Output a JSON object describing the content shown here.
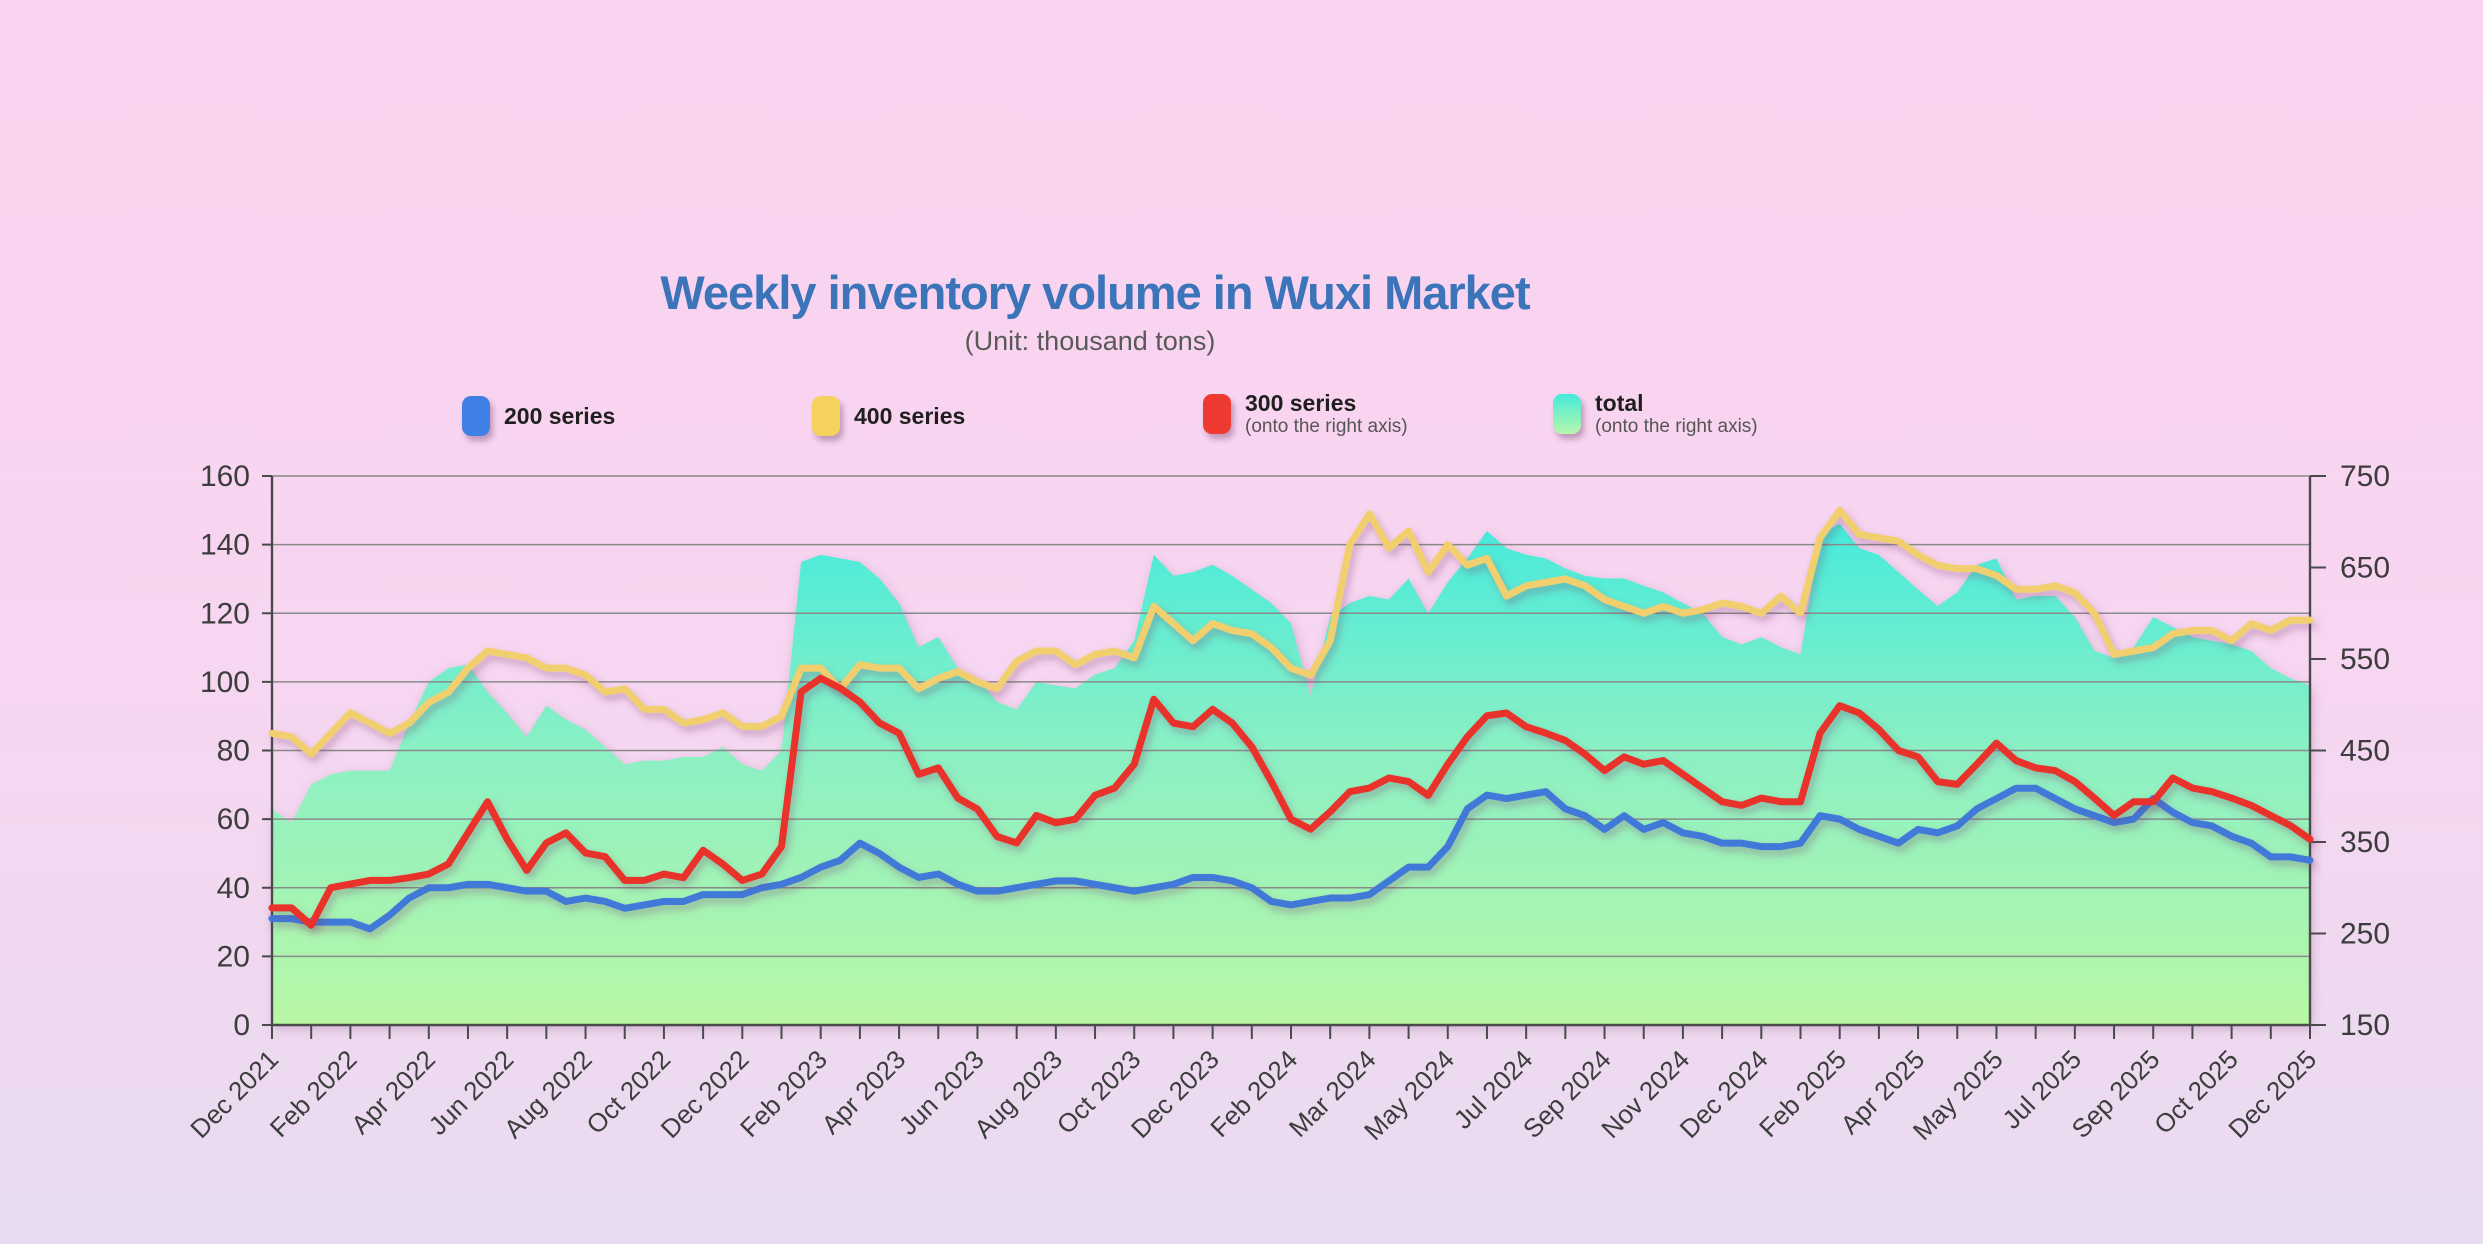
{
  "title": {
    "text": "Weekly inventory volume in Wuxi Market",
    "color": "#3b74b9"
  },
  "subtitle": {
    "text": "(Unit: thousand tons)"
  },
  "legend": [
    {
      "label": "200 series",
      "sublabel": "",
      "color": "#3f80e4"
    },
    {
      "label": "400 series",
      "sublabel": "",
      "color": "#f5d25e"
    },
    {
      "label": "300 series",
      "sublabel": "(onto the right axis)",
      "color": "#ee3a31"
    },
    {
      "label": "total",
      "sublabel": "(onto the right axis)",
      "gradient": [
        "#43ead9",
        "#b9f6ad"
      ]
    }
  ],
  "chart_data": {
    "type": "line",
    "title": "Weekly inventory volume in Wuxi Market",
    "subtitle": "(Unit: thousand tons)",
    "grid": "horizontal-only",
    "legend_position": "top",
    "x_labels": [
      "Dec 2021",
      "Feb 2022",
      "Apr 2022",
      "Jun 2022",
      "Aug 2022",
      "Oct 2022",
      "Dec 2022",
      "Feb 2023",
      "Apr 2023",
      "Jun 2023",
      "Aug 2023",
      "Oct 2023",
      "Dec 2023",
      "Feb 2024",
      "Mar 2024",
      "May 2024",
      "Jul 2024",
      "Sep 2024",
      "Nov 2024",
      "Dec 2024",
      "Feb 2025",
      "Apr 2025",
      "May 2025",
      "Jul 2025",
      "Sep 2025",
      "Oct 2025",
      "Dec 2025"
    ],
    "axes": {
      "left": {
        "min": 0,
        "max": 160,
        "ticks": [
          0,
          20,
          40,
          60,
          80,
          100,
          120,
          140,
          160
        ]
      },
      "right": {
        "min": 150,
        "max": 750,
        "ticks": [
          150,
          250,
          350,
          450,
          550,
          650,
          750
        ]
      }
    },
    "series": [
      {
        "name": "total",
        "axis": "right",
        "style": "area",
        "gradient": [
          "#38e9e0",
          "#8bf0c4",
          "#b9f7a6"
        ],
        "values": [
          386,
          371,
          413,
          424,
          428,
          428,
          428,
          480,
          525,
          540,
          544,
          514,
          491,
          465,
          499,
          484,
          473,
          454,
          435,
          439,
          439,
          443,
          443,
          454,
          435,
          428,
          450,
          656,
          664,
          660,
          656,
          638,
          611,
          563,
          574,
          540,
          529,
          503,
          495,
          525,
          521,
          518,
          533,
          540,
          570,
          664,
          641,
          645,
          653,
          641,
          626,
          611,
          589,
          510,
          596,
          611,
          619,
          615,
          638,
          600,
          634,
          660,
          690,
          671,
          664,
          660,
          649,
          641,
          638,
          638,
          630,
          623,
          611,
          600,
          574,
          566,
          574,
          563,
          555,
          686,
          698,
          671,
          664,
          645,
          626,
          608,
          623,
          653,
          660,
          615,
          619,
          619,
          596,
          559,
          551,
          563,
          596,
          585,
          574,
          570,
          566,
          559,
          540,
          529,
          521
        ]
      },
      {
        "name": "400 series",
        "axis": "left",
        "style": "line",
        "color": "#f2cf6e",
        "values": [
          85,
          84,
          79,
          85,
          91,
          88,
          85,
          88,
          94,
          97,
          104,
          109,
          108,
          107,
          104,
          104,
          102,
          97,
          98,
          92,
          92,
          88,
          89,
          91,
          87,
          87,
          90,
          104,
          104,
          98,
          105,
          104,
          104,
          98,
          101,
          103,
          100,
          98,
          106,
          109,
          109,
          105,
          108,
          109,
          107,
          122,
          117,
          112,
          117,
          115,
          114,
          110,
          104,
          102,
          112,
          140,
          149,
          139,
          144,
          132,
          140,
          134,
          136,
          125,
          128,
          129,
          130,
          128,
          124,
          122,
          120,
          122,
          120,
          121,
          123,
          122,
          120,
          125,
          120,
          142,
          150,
          143,
          142,
          141,
          137,
          134,
          133,
          133,
          131,
          127,
          127,
          128,
          126,
          120,
          108,
          109,
          110,
          114,
          115,
          115,
          112,
          117,
          115,
          118,
          118
        ]
      },
      {
        "name": "200 series",
        "axis": "left",
        "style": "line",
        "color": "#4179d8",
        "values": [
          31,
          31,
          30,
          30,
          30,
          28,
          32,
          37,
          40,
          40,
          41,
          41,
          40,
          39,
          39,
          36,
          37,
          36,
          34,
          35,
          36,
          36,
          38,
          38,
          38,
          40,
          41,
          43,
          46,
          48,
          53,
          50,
          46,
          43,
          44,
          41,
          39,
          39,
          40,
          41,
          42,
          42,
          41,
          40,
          39,
          40,
          41,
          43,
          43,
          42,
          40,
          36,
          35,
          36,
          37,
          37,
          38,
          42,
          46,
          46,
          52,
          63,
          67,
          66,
          67,
          68,
          63,
          61,
          57,
          61,
          57,
          59,
          56,
          55,
          53,
          53,
          52,
          52,
          53,
          61,
          60,
          57,
          55,
          53,
          57,
          56,
          58,
          63,
          66,
          69,
          69,
          66,
          63,
          61,
          59,
          60,
          66,
          62,
          59,
          58,
          55,
          53,
          49,
          49,
          48
        ]
      },
      {
        "name": "300 series",
        "axis": "right",
        "style": "line",
        "color": "#e8302a",
        "values": [
          278,
          278,
          259,
          300,
          304,
          308,
          308,
          311,
          315,
          326,
          360,
          394,
          353,
          319,
          349,
          360,
          338,
          334,
          308,
          308,
          315,
          311,
          341,
          326,
          308,
          315,
          345,
          514,
          529,
          518,
          503,
          480,
          469,
          424,
          431,
          398,
          386,
          356,
          349,
          379,
          371,
          375,
          401,
          409,
          435,
          506,
          480,
          476,
          495,
          480,
          454,
          416,
          375,
          364,
          383,
          405,
          409,
          420,
          416,
          401,
          435,
          465,
          488,
          491,
          476,
          469,
          461,
          446,
          428,
          443,
          435,
          439,
          424,
          409,
          394,
          390,
          398,
          394,
          394,
          469,
          499,
          491,
          473,
          450,
          443,
          416,
          413,
          435,
          458,
          439,
          431,
          428,
          416,
          398,
          379,
          394,
          394,
          420,
          409,
          405,
          398,
          390,
          379,
          368,
          353
        ]
      }
    ]
  }
}
